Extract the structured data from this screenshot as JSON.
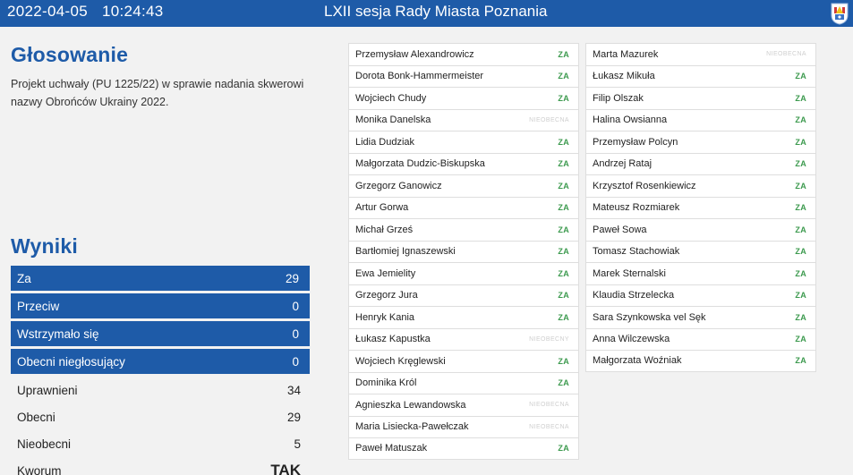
{
  "header": {
    "date": "2022-04-05",
    "time": "10:24:43",
    "session_title": "LXII sesja Rady Miasta Poznania"
  },
  "voting": {
    "heading": "Głosowanie",
    "description": "Projekt uchwały (PU 1225/22) w sprawie nadania skwerowi nazwy Obrońców Ukrainy 2022."
  },
  "results": {
    "heading": "Wyniki",
    "highlighted": [
      {
        "label": "Za",
        "value": "29"
      },
      {
        "label": "Przeciw",
        "value": "0"
      },
      {
        "label": "Wstrzymało się",
        "value": "0"
      },
      {
        "label": "Obecni niegłosujący",
        "value": "0"
      }
    ],
    "summary": [
      {
        "label": "Uprawnieni",
        "value": "34"
      },
      {
        "label": "Obecni",
        "value": "29"
      },
      {
        "label": "Nieobecni",
        "value": "5"
      },
      {
        "label": "Kworum",
        "value": "TAK"
      }
    ]
  },
  "councillors_left": [
    {
      "name": "Przemysław Alexandrowicz",
      "vote": "ZA"
    },
    {
      "name": "Dorota Bonk-Hammermeister",
      "vote": "ZA"
    },
    {
      "name": "Wojciech Chudy",
      "vote": "ZA"
    },
    {
      "name": "Monika Danelska",
      "vote": "NIEOBECNA"
    },
    {
      "name": "Lidia Dudziak",
      "vote": "ZA"
    },
    {
      "name": "Małgorzata Dudzic-Biskupska",
      "vote": "ZA"
    },
    {
      "name": "Grzegorz Ganowicz",
      "vote": "ZA"
    },
    {
      "name": "Artur Gorwa",
      "vote": "ZA"
    },
    {
      "name": "Michał Grześ",
      "vote": "ZA"
    },
    {
      "name": "Bartłomiej Ignaszewski",
      "vote": "ZA"
    },
    {
      "name": "Ewa Jemielity",
      "vote": "ZA"
    },
    {
      "name": "Grzegorz Jura",
      "vote": "ZA"
    },
    {
      "name": "Henryk Kania",
      "vote": "ZA"
    },
    {
      "name": "Łukasz Kapustka",
      "vote": "NIEOBECNY"
    },
    {
      "name": "Wojciech Kręglewski",
      "vote": "ZA"
    },
    {
      "name": "Dominika Król",
      "vote": "ZA"
    },
    {
      "name": "Agnieszka Lewandowska",
      "vote": "NIEOBECNA"
    },
    {
      "name": "Maria Lisiecka-Pawełczak",
      "vote": "NIEOBECNA"
    },
    {
      "name": "Paweł Matuszak",
      "vote": "ZA"
    }
  ],
  "councillors_right": [
    {
      "name": "Marta Mazurek",
      "vote": "NIEOBECNA"
    },
    {
      "name": "Łukasz Mikuła",
      "vote": "ZA"
    },
    {
      "name": "Filip Olszak",
      "vote": "ZA"
    },
    {
      "name": "Halina Owsianna",
      "vote": "ZA"
    },
    {
      "name": "Przemysław Polcyn",
      "vote": "ZA"
    },
    {
      "name": "Andrzej Rataj",
      "vote": "ZA"
    },
    {
      "name": "Krzysztof Rosenkiewicz",
      "vote": "ZA"
    },
    {
      "name": "Mateusz Rozmiarek",
      "vote": "ZA"
    },
    {
      "name": "Paweł Sowa",
      "vote": "ZA"
    },
    {
      "name": "Tomasz Stachowiak",
      "vote": "ZA"
    },
    {
      "name": "Marek Sternalski",
      "vote": "ZA"
    },
    {
      "name": "Klaudia Strzelecka",
      "vote": "ZA"
    },
    {
      "name": "Sara Szynkowska vel Sęk",
      "vote": "ZA"
    },
    {
      "name": "Anna Wilczewska",
      "vote": "ZA"
    },
    {
      "name": "Małgorzata Woźniak",
      "vote": "ZA"
    }
  ],
  "colors": {
    "brand_blue": "#1e5ba8",
    "vote_for": "#3c9a4e",
    "absent": "#cfcfcf"
  },
  "icons": {
    "crest": "city-crest-icon"
  }
}
